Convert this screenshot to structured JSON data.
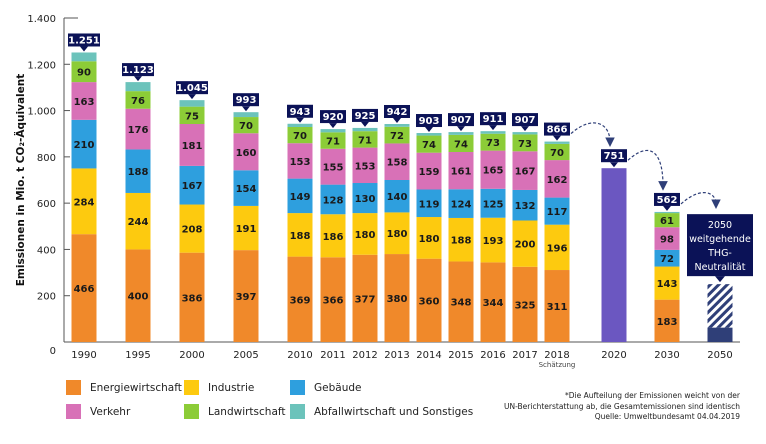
{
  "chart_data": {
    "type": "bar",
    "stacked": true,
    "title": "",
    "ylabel": "Emissionen in Mio. t CO₂-Äquivalent",
    "xlabel": "",
    "ylim": [
      0,
      1400
    ],
    "yticks": [
      0,
      200,
      400,
      600,
      800,
      1000,
      1200,
      1400
    ],
    "ytick_labels": [
      "0",
      "200",
      "400",
      "600",
      "800",
      "1.000",
      "1.200",
      "1.400"
    ],
    "grid": false,
    "legend_position": "bottom-left",
    "series": [
      {
        "name": "Energiewirtschaft",
        "color": "#f0892a"
      },
      {
        "name": "Industrie",
        "color": "#fdca0f"
      },
      {
        "name": "Gebäude",
        "color": "#2e9fde"
      },
      {
        "name": "Verkehr",
        "color": "#d871b7"
      },
      {
        "name": "Landwirtschaft",
        "color": "#8ccc37"
      },
      {
        "name": "Abfallwirtschaft und Sonstiges",
        "color": "#6cc3bb"
      }
    ],
    "bars": [
      {
        "x": "1990",
        "values": [
          466,
          284,
          210,
          163,
          90,
          38
        ],
        "total": "1.251",
        "total_value": 1251
      },
      {
        "x": "1995",
        "values": [
          400,
          244,
          188,
          176,
          76,
          39
        ],
        "total": "1.123",
        "total_value": 1123
      },
      {
        "x": "2000",
        "values": [
          386,
          208,
          167,
          181,
          75,
          28
        ],
        "total": "1.045",
        "total_value": 1045
      },
      {
        "x": "2005",
        "values": [
          397,
          191,
          154,
          160,
          70,
          21
        ],
        "total": "993",
        "total_value": 993
      },
      {
        "x": "2010",
        "values": [
          369,
          188,
          149,
          153,
          70,
          14
        ],
        "total": "943",
        "total_value": 943
      },
      {
        "x": "2011",
        "values": [
          366,
          186,
          128,
          155,
          71,
          14
        ],
        "total": "920",
        "total_value": 920
      },
      {
        "x": "2012",
        "values": [
          377,
          180,
          130,
          153,
          71,
          14
        ],
        "total": "925",
        "total_value": 925
      },
      {
        "x": "2013",
        "values": [
          380,
          180,
          140,
          158,
          72,
          12
        ],
        "total": "942",
        "total_value": 942
      },
      {
        "x": "2014",
        "values": [
          360,
          180,
          119,
          159,
          74,
          11
        ],
        "total": "903",
        "total_value": 903
      },
      {
        "x": "2015",
        "values": [
          348,
          188,
          124,
          161,
          74,
          12
        ],
        "total": "907",
        "total_value": 907
      },
      {
        "x": "2016",
        "values": [
          344,
          193,
          125,
          165,
          73,
          11
        ],
        "total": "911",
        "total_value": 911
      },
      {
        "x": "2017",
        "values": [
          325,
          200,
          132,
          167,
          73,
          10
        ],
        "total": "907",
        "total_value": 907
      },
      {
        "x": "2018",
        "values": [
          311,
          196,
          117,
          162,
          70,
          10
        ],
        "total": "866",
        "total_value": 866,
        "sublabel": "Schätzung"
      },
      {
        "x": "2020",
        "target": true,
        "value": 751,
        "total": "751",
        "total_value": 751,
        "color": "#6b57c1"
      },
      {
        "x": "2030",
        "values": [
          183,
          143,
          72,
          98,
          61,
          5
        ],
        "total": "562",
        "total_value": 562
      },
      {
        "x": "2050",
        "goal": true,
        "solid_value": 62,
        "hatched_upper": 250,
        "color": "#2f3f78",
        "goal_text": [
          "2050",
          "weitgehende",
          "THG-",
          "Neutralität"
        ]
      }
    ],
    "segment_labels_hidden_for_series": [
      "Abfallwirtschaft und Sonstiges"
    ],
    "arrows": [
      [
        "2018",
        "2020"
      ],
      [
        "2020",
        "2030"
      ],
      [
        "2030",
        "2050"
      ]
    ],
    "colors": {
      "total_badge": "#0b1257",
      "axis": "#555555",
      "arrow": "#2f3f78"
    }
  },
  "legend": [
    {
      "label": "Energiewirtschaft",
      "color": "#f0892a"
    },
    {
      "label": "Industrie",
      "color": "#fdca0f"
    },
    {
      "label": "Gebäude",
      "color": "#2e9fde"
    },
    {
      "label": "Verkehr",
      "color": "#d871b7"
    },
    {
      "label": "Landwirtschaft",
      "color": "#8ccc37"
    },
    {
      "label": "Abfallwirtschaft und Sonstiges",
      "color": "#6cc3bb"
    }
  ],
  "note": {
    "line1": "*Die Aufteilung der Emissionen weicht von der",
    "line2": "UN-Berichterstattung ab, die Gesamtemissionen sind identisch",
    "line3": "Quelle: Umweltbundesamt 04.04.2019"
  }
}
